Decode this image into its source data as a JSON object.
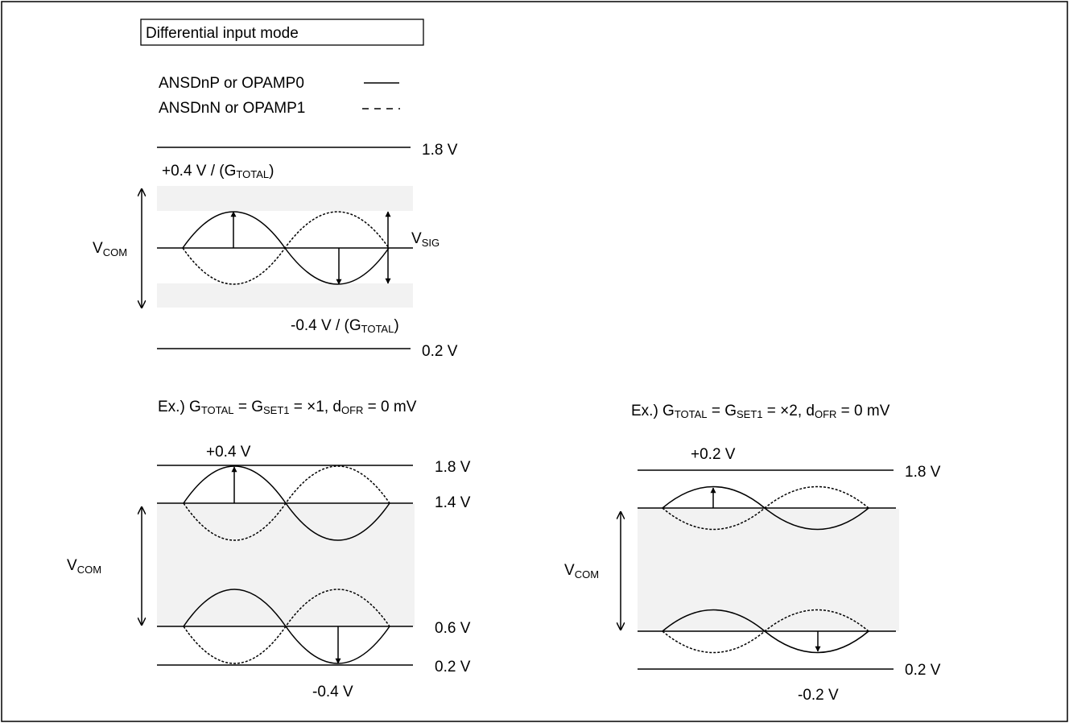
{
  "mode_title": "Differential input mode",
  "legend": {
    "solid_label": "ANSDnP or OPAMP0",
    "dashed_label": "ANSDnN or OPAMP1"
  },
  "top": {
    "upper_rail": "1.8 V",
    "lower_rail": "0.2 V",
    "plus_limit": {
      "main": "+0.4 V / (G",
      "sub": "TOTAL",
      "close": ")"
    },
    "minus_limit": {
      "main": "-0.4 V / (G",
      "sub": "TOTAL",
      "close": ")"
    },
    "vcom": {
      "main": "V",
      "sub": "COM"
    },
    "vsig": {
      "main": "V",
      "sub": "SIG"
    }
  },
  "example1": {
    "caption": {
      "prefix": "Ex.) G",
      "sub1": "TOTAL",
      "mid1": " = G",
      "sub2": "SET1",
      "mid2": " = ×1, d",
      "sub3": "OFR",
      "suffix": " = 0 mV"
    },
    "levels": [
      "1.8 V",
      "1.4 V",
      "0.6 V",
      "0.2 V"
    ],
    "plus_label": "+0.4 V",
    "minus_label": "-0.4 V",
    "vcom": {
      "main": "V",
      "sub": "COM"
    }
  },
  "example2": {
    "caption": {
      "prefix": "Ex.) G",
      "sub1": "TOTAL",
      "mid1": " = G",
      "sub2": "SET1",
      "mid2": " = ×2, d",
      "sub3": "OFR",
      "suffix": " = 0 mV"
    },
    "levels": [
      "1.8 V",
      "0.2 V"
    ],
    "plus_label": "+0.2 V",
    "minus_label": "-0.2 V",
    "vcom": {
      "main": "V",
      "sub": "COM"
    }
  },
  "colors": {
    "band": "#f2f2f2",
    "line": "#000000"
  }
}
